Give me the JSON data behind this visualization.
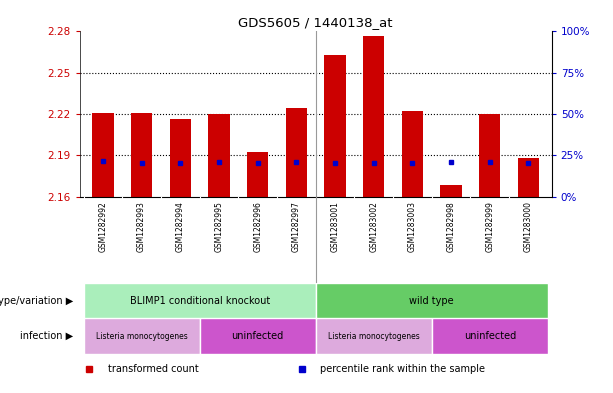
{
  "title": "GDS5605 / 1440138_at",
  "samples": [
    "GSM1282992",
    "GSM1282993",
    "GSM1282994",
    "GSM1282995",
    "GSM1282996",
    "GSM1282997",
    "GSM1283001",
    "GSM1283002",
    "GSM1283003",
    "GSM1282998",
    "GSM1282999",
    "GSM1283000"
  ],
  "transformed_count": [
    2.221,
    2.221,
    2.216,
    2.22,
    2.192,
    2.224,
    2.263,
    2.277,
    2.222,
    2.168,
    2.22,
    2.188
  ],
  "percentile_rank": [
    2.186,
    2.184,
    2.184,
    2.185,
    2.184,
    2.185,
    2.184,
    2.184,
    2.184,
    2.185,
    2.185,
    2.184
  ],
  "bar_bottom": 2.16,
  "ylim": [
    2.16,
    2.28
  ],
  "yticks": [
    2.16,
    2.19,
    2.22,
    2.25,
    2.28
  ],
  "right_yticks": [
    0,
    25,
    50,
    75,
    100
  ],
  "bar_color": "#cc0000",
  "percentile_color": "#0000cc",
  "left_label_color": "#cc0000",
  "right_label_color": "#0000cc",
  "xtick_bg_color": "#d0d0d0",
  "genotype_groups": [
    {
      "label": "BLIMP1 conditional knockout",
      "start": 0,
      "end": 6,
      "color": "#aaeebb"
    },
    {
      "label": "wild type",
      "start": 6,
      "end": 12,
      "color": "#66cc66"
    }
  ],
  "infection_groups": [
    {
      "label": "Listeria monocytogenes",
      "start": 0,
      "end": 3,
      "color": "#ddaadd"
    },
    {
      "label": "uninfected",
      "start": 3,
      "end": 6,
      "color": "#cc55cc"
    },
    {
      "label": "Listeria monocytogenes",
      "start": 6,
      "end": 9,
      "color": "#ddaadd"
    },
    {
      "label": "uninfected",
      "start": 9,
      "end": 12,
      "color": "#cc55cc"
    }
  ],
  "legend_items": [
    {
      "label": "transformed count",
      "color": "#cc0000"
    },
    {
      "label": "percentile rank within the sample",
      "color": "#0000cc"
    }
  ],
  "genotype_label": "genotype/variation",
  "infection_label": "infection"
}
